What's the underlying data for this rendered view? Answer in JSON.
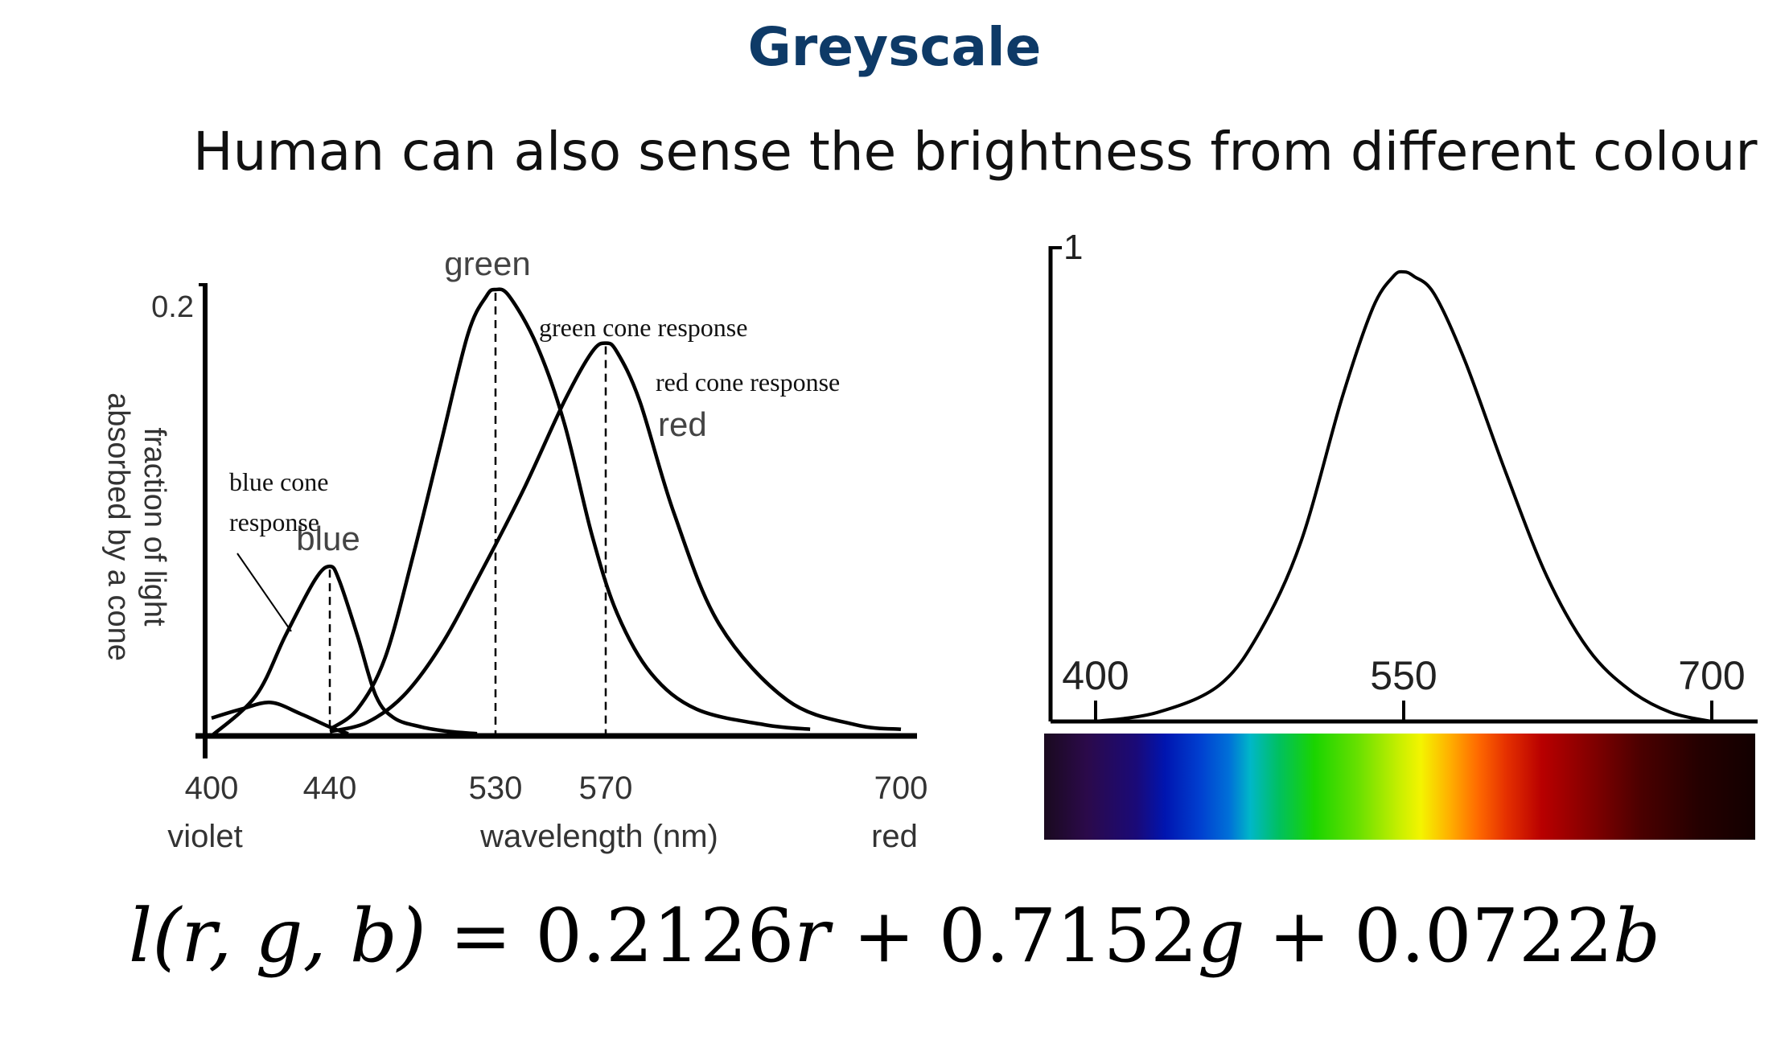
{
  "slide": {
    "title": "Greyscale",
    "subtitle": "Human can also sense the brightness from different colour"
  },
  "formula": {
    "lhs_fn": "l",
    "lhs_args": "(r, g, b)",
    "equals": " = ",
    "term1_coef": "0.2126",
    "term1_var": "r",
    "plus1": " + ",
    "term2_coef": "0.7152",
    "term2_var": "g",
    "plus2": " + ",
    "term3_coef": "0.0722",
    "term3_var": "b"
  },
  "colors": {
    "curve": "#000000",
    "title": "#0e3a67"
  },
  "chart_data": [
    {
      "type": "line",
      "ylabel": "fraction of light absorbed by a cone",
      "xlabel": "wavelength (nm)",
      "x_tick_labels": [
        "400",
        "440",
        "530",
        "570",
        "700"
      ],
      "x_end_labels": [
        "violet",
        "red"
      ],
      "y_tick_labels": [
        "0.2"
      ],
      "xlim": [
        400,
        700
      ],
      "ylim": [
        0,
        0.2
      ],
      "series": [
        {
          "name": "blue",
          "annotation": "blue cone response",
          "peak": 440,
          "x": [
            400,
            415,
            425,
            435,
            440,
            445,
            455,
            465,
            475,
            490,
            505,
            520
          ],
          "y": [
            0.0,
            0.018,
            0.045,
            0.07,
            0.076,
            0.07,
            0.045,
            0.018,
            0.008,
            0.004,
            0.002,
            0.001
          ]
        },
        {
          "name": "blue-secondary",
          "x": [
            400,
            410,
            420,
            430,
            440,
            450
          ],
          "y": [
            0.008,
            0.012,
            0.015,
            0.01,
            0.004,
            0.001
          ]
        },
        {
          "name": "green",
          "annotation": "green cone response",
          "peak": 530,
          "x": [
            440,
            455,
            470,
            485,
            500,
            515,
            525,
            530,
            535,
            545,
            555,
            565,
            575,
            590,
            610,
            640,
            660
          ],
          "y": [
            0.003,
            0.012,
            0.035,
            0.08,
            0.13,
            0.18,
            0.197,
            0.2,
            0.197,
            0.175,
            0.14,
            0.09,
            0.055,
            0.028,
            0.012,
            0.005,
            0.003
          ]
        },
        {
          "name": "red",
          "annotation": "red cone response",
          "peak": 570,
          "x": [
            440,
            460,
            480,
            500,
            520,
            540,
            555,
            565,
            570,
            575,
            585,
            600,
            620,
            650,
            680,
            700
          ],
          "y": [
            0.002,
            0.006,
            0.018,
            0.04,
            0.07,
            0.11,
            0.15,
            0.172,
            0.176,
            0.172,
            0.15,
            0.1,
            0.05,
            0.016,
            0.005,
            0.003
          ]
        }
      ]
    },
    {
      "type": "line",
      "x_tick_labels": [
        "400",
        "550",
        "700"
      ],
      "y_tick_labels": [
        "1"
      ],
      "xlim": [
        400,
        700
      ],
      "ylim": [
        0,
        1
      ],
      "series": [
        {
          "x": [
            400,
            430,
            460,
            480,
            500,
            520,
            535,
            545,
            550,
            555,
            565,
            580,
            600,
            620,
            640,
            660,
            680,
            700
          ],
          "y": [
            0.0,
            0.02,
            0.08,
            0.2,
            0.4,
            0.72,
            0.92,
            0.99,
            1.0,
            0.99,
            0.95,
            0.8,
            0.55,
            0.32,
            0.16,
            0.07,
            0.02,
            0.0
          ]
        }
      ]
    }
  ]
}
